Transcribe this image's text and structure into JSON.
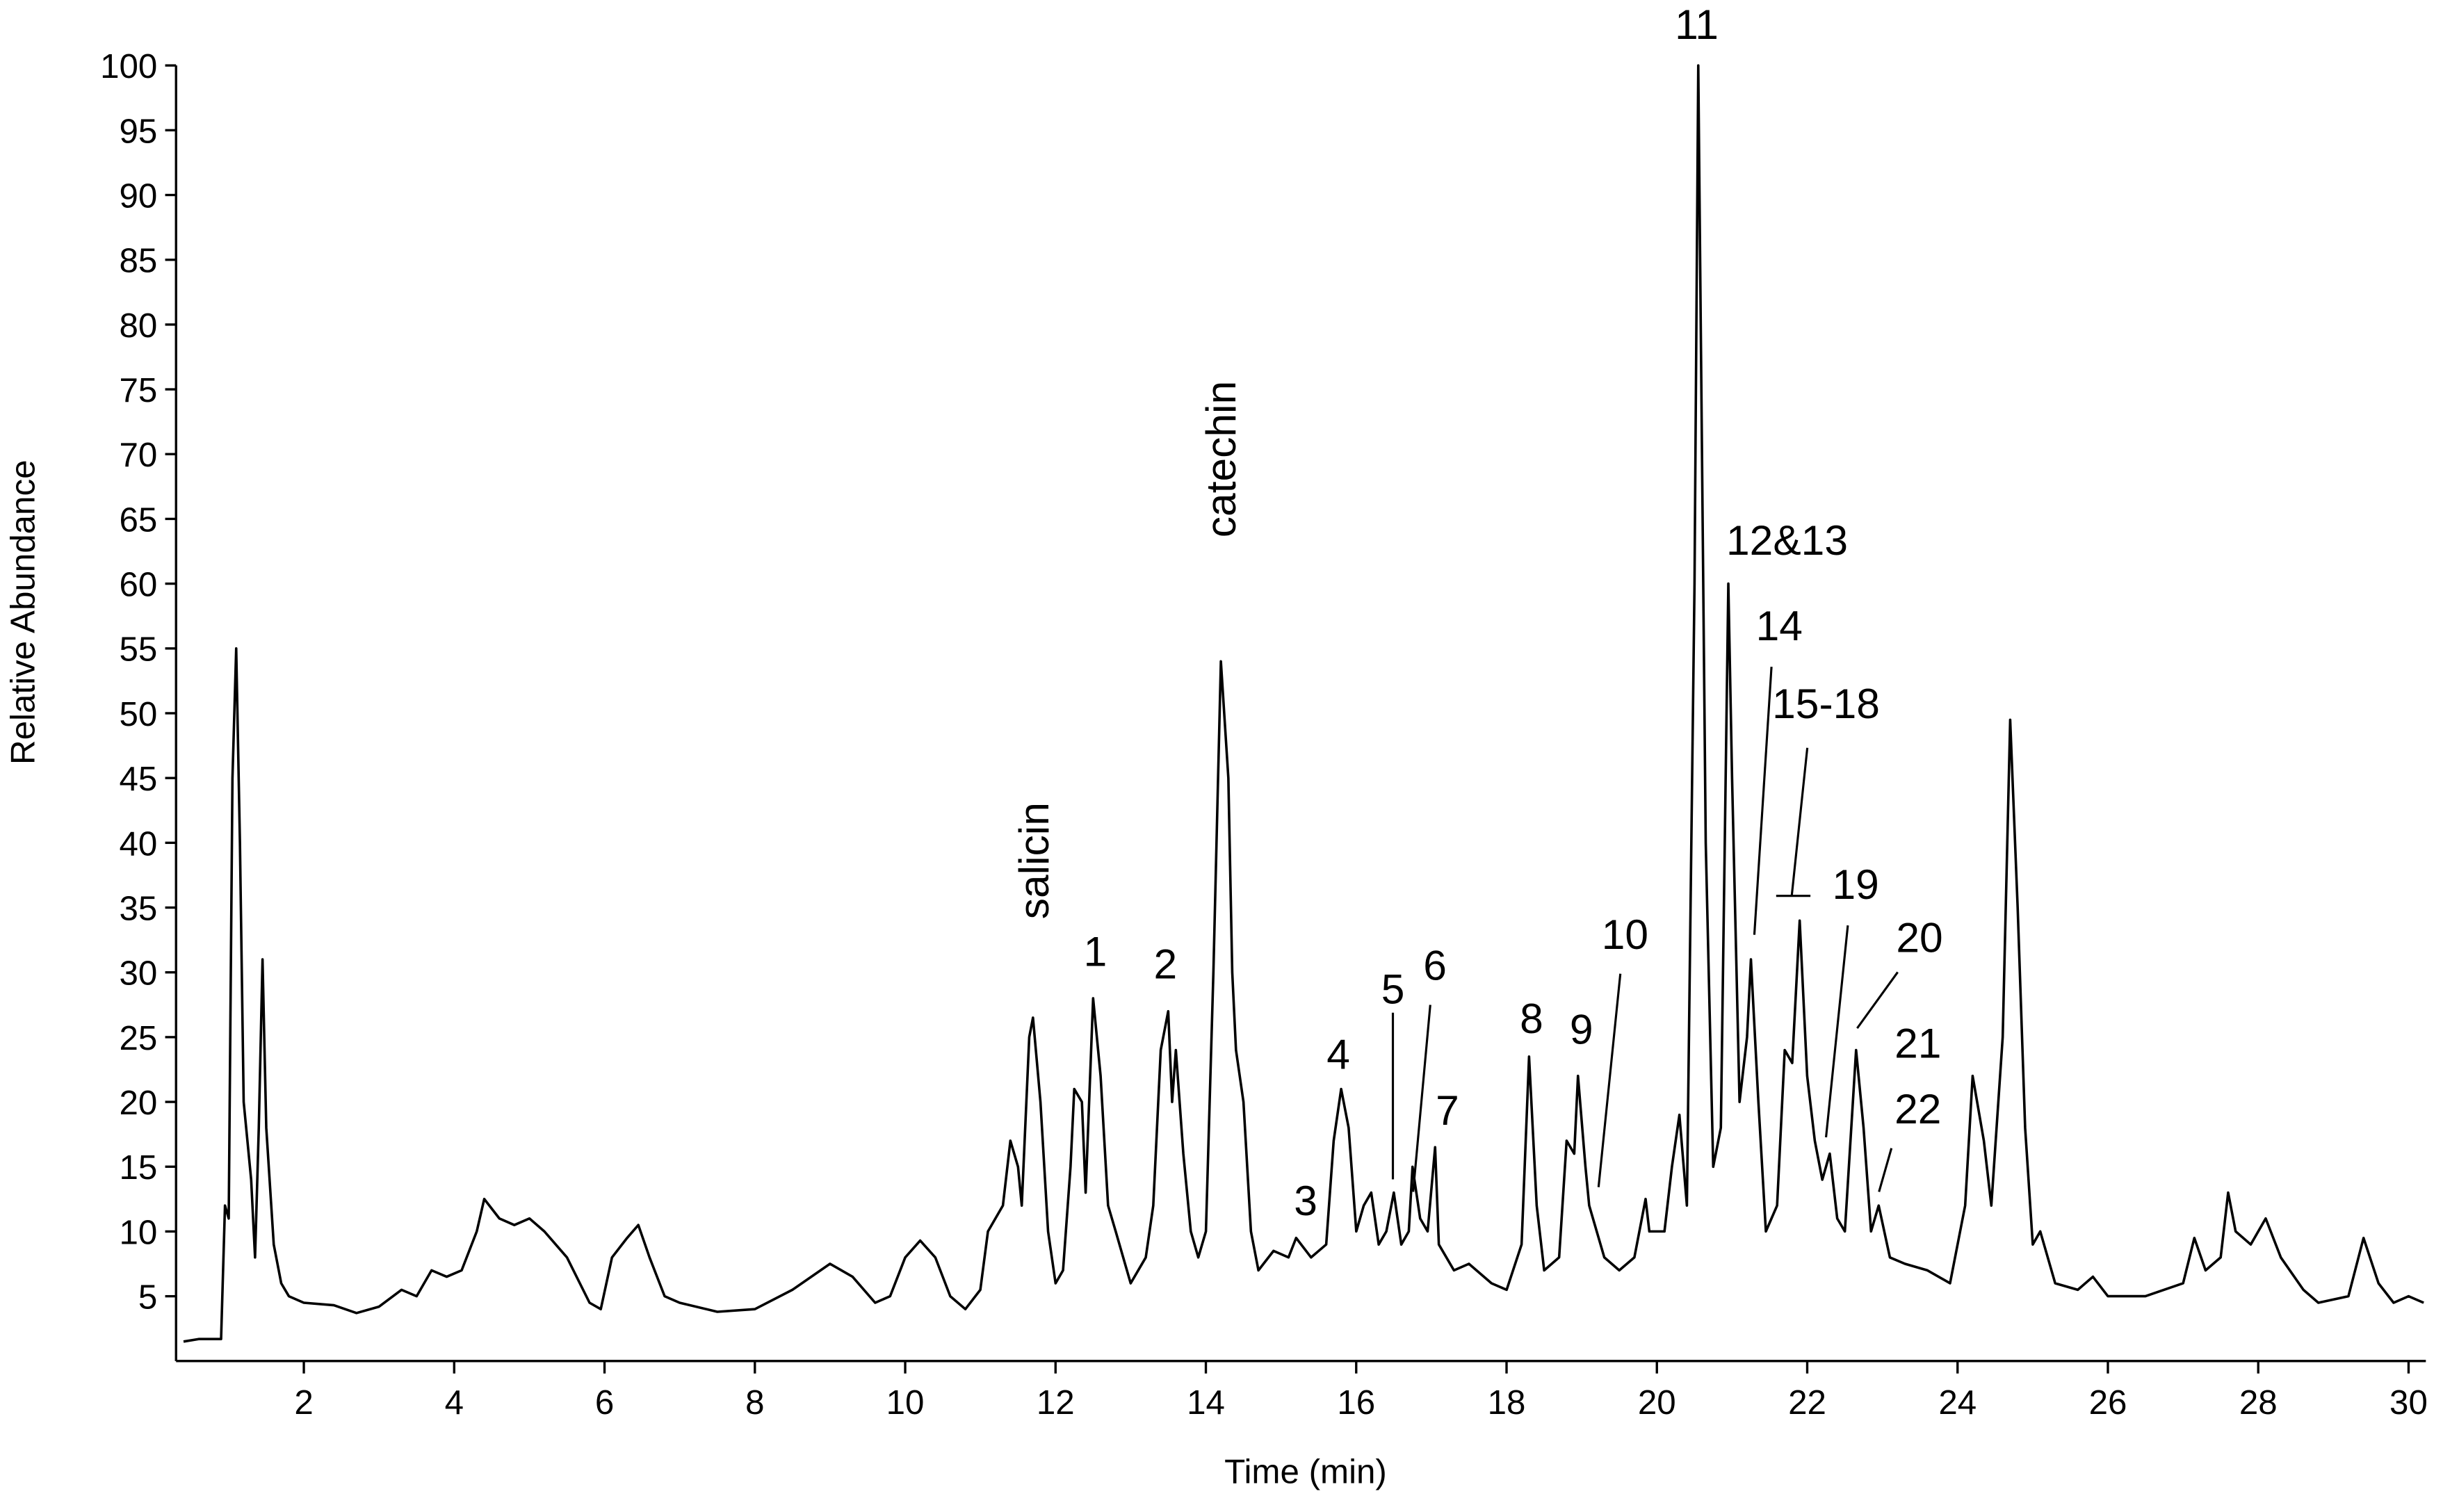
{
  "chart_data": {
    "type": "line",
    "color": "#000000",
    "x_label": "Time (min)",
    "y_label": "Relative Abundance",
    "xlim": [
      0.3,
      30.23
    ],
    "ylim": [
      0,
      100
    ],
    "xticks": [
      2,
      4,
      6,
      8,
      10,
      12,
      14,
      16,
      18,
      20,
      22,
      24,
      26,
      28,
      30
    ],
    "yticks": [
      5,
      10,
      15,
      20,
      25,
      30,
      35,
      40,
      45,
      50,
      55,
      60,
      65,
      70,
      75,
      80,
      85,
      90,
      95,
      100
    ],
    "x": [
      0.4,
      0.6,
      0.9,
      0.95,
      1.0,
      1.05,
      1.1,
      1.15,
      1.2,
      1.3,
      1.35,
      1.4,
      1.45,
      1.5,
      1.6,
      1.7,
      1.8,
      2.0,
      2.4,
      2.7,
      3.0,
      3.3,
      3.5,
      3.7,
      3.9,
      4.1,
      4.3,
      4.4,
      4.6,
      4.8,
      5.0,
      5.2,
      5.5,
      5.8,
      5.95,
      6.1,
      6.3,
      6.45,
      6.6,
      6.8,
      7.0,
      7.5,
      8.0,
      8.5,
      9.0,
      9.3,
      9.6,
      9.8,
      10.0,
      10.2,
      10.4,
      10.6,
      10.8,
      11.0,
      11.1,
      11.3,
      11.4,
      11.5,
      11.55,
      11.65,
      11.7,
      11.8,
      11.9,
      12.0,
      12.1,
      12.2,
      12.25,
      12.35,
      12.4,
      12.5,
      12.6,
      12.7,
      12.8,
      12.9,
      13.0,
      13.2,
      13.3,
      13.4,
      13.5,
      13.55,
      13.6,
      13.7,
      13.8,
      13.9,
      14.0,
      14.1,
      14.2,
      14.3,
      14.35,
      14.4,
      14.5,
      14.6,
      14.7,
      14.9,
      15.1,
      15.2,
      15.4,
      15.6,
      15.7,
      15.8,
      15.9,
      16.0,
      16.1,
      16.2,
      16.3,
      16.4,
      16.5,
      16.6,
      16.7,
      16.75,
      16.85,
      16.95,
      17.05,
      17.1,
      17.3,
      17.5,
      17.8,
      18.0,
      18.2,
      18.3,
      18.4,
      18.5,
      18.7,
      18.8,
      18.9,
      18.95,
      19.05,
      19.1,
      19.3,
      19.5,
      19.7,
      19.85,
      19.9,
      20.1,
      20.2,
      20.3,
      20.4,
      20.5,
      20.55,
      20.65,
      20.75,
      20.85,
      20.95,
      21.0,
      21.1,
      21.2,
      21.25,
      21.35,
      21.45,
      21.6,
      21.7,
      21.8,
      21.9,
      22.0,
      22.1,
      22.2,
      22.3,
      22.4,
      22.5,
      22.65,
      22.75,
      22.85,
      22.95,
      23.1,
      23.3,
      23.6,
      23.9,
      24.1,
      24.2,
      24.35,
      24.45,
      24.6,
      24.7,
      24.8,
      24.9,
      25.0,
      25.1,
      25.3,
      25.6,
      25.8,
      26.0,
      26.5,
      27.0,
      27.15,
      27.3,
      27.5,
      27.6,
      27.7,
      27.9,
      28.1,
      28.3,
      28.6,
      28.8,
      29.2,
      29.4,
      29.6,
      29.8,
      30.0,
      30.2
    ],
    "values": [
      1.5,
      1.7,
      1.7,
      12,
      11,
      45,
      55,
      40,
      20,
      14,
      8,
      18,
      31,
      18,
      9,
      6,
      5,
      4.5,
      4.3,
      3.7,
      4.2,
      5.5,
      5,
      7,
      6.5,
      7,
      10,
      12.5,
      11,
      10.5,
      11,
      10,
      8,
      4.5,
      4,
      8,
      9.5,
      10.5,
      8,
      5,
      4.5,
      3.8,
      4,
      5.5,
      7.5,
      6.5,
      4.5,
      5,
      8,
      9.3,
      8,
      5,
      4,
      5.5,
      10,
      12,
      17,
      15,
      12,
      25,
      26.5,
      20,
      10,
      6,
      7,
      15,
      21,
      20,
      13,
      28,
      22,
      12,
      10,
      8,
      6,
      8,
      12,
      24,
      27,
      20,
      24,
      16,
      10,
      8,
      10,
      30,
      54,
      45,
      30,
      24,
      20,
      10,
      7,
      8.5,
      8,
      9.5,
      8,
      9,
      17,
      21,
      18,
      10,
      12,
      13,
      9,
      10,
      13,
      9,
      10,
      15,
      11,
      10,
      16.5,
      9,
      7,
      7.5,
      6,
      5.5,
      9,
      23.5,
      12,
      7,
      8,
      17,
      16,
      22,
      15,
      12,
      8,
      7,
      8,
      12.5,
      10,
      10,
      15,
      19,
      12,
      60,
      100,
      40,
      15,
      18,
      60,
      45,
      20,
      25,
      31,
      20,
      10,
      12,
      24,
      23,
      34,
      22,
      17,
      14,
      16,
      11,
      10,
      24,
      18,
      10,
      12,
      8,
      7.5,
      7,
      6,
      12,
      22,
      17,
      12,
      25,
      49.5,
      35,
      18,
      9,
      10,
      6,
      5.5,
      6.5,
      5,
      5,
      6,
      9.5,
      7,
      8,
      13,
      10,
      9,
      11,
      8,
      5.5,
      4.5,
      5,
      9.5,
      6,
      4.5,
      5,
      4.5
    ],
    "annotations": [
      "salicin",
      "1",
      "2",
      "catechin",
      "3",
      "4",
      "5",
      "6",
      "7",
      "8",
      "9",
      "10",
      "11",
      "12&13",
      "14",
      "15-18",
      "19",
      "20",
      "21",
      "22"
    ]
  }
}
